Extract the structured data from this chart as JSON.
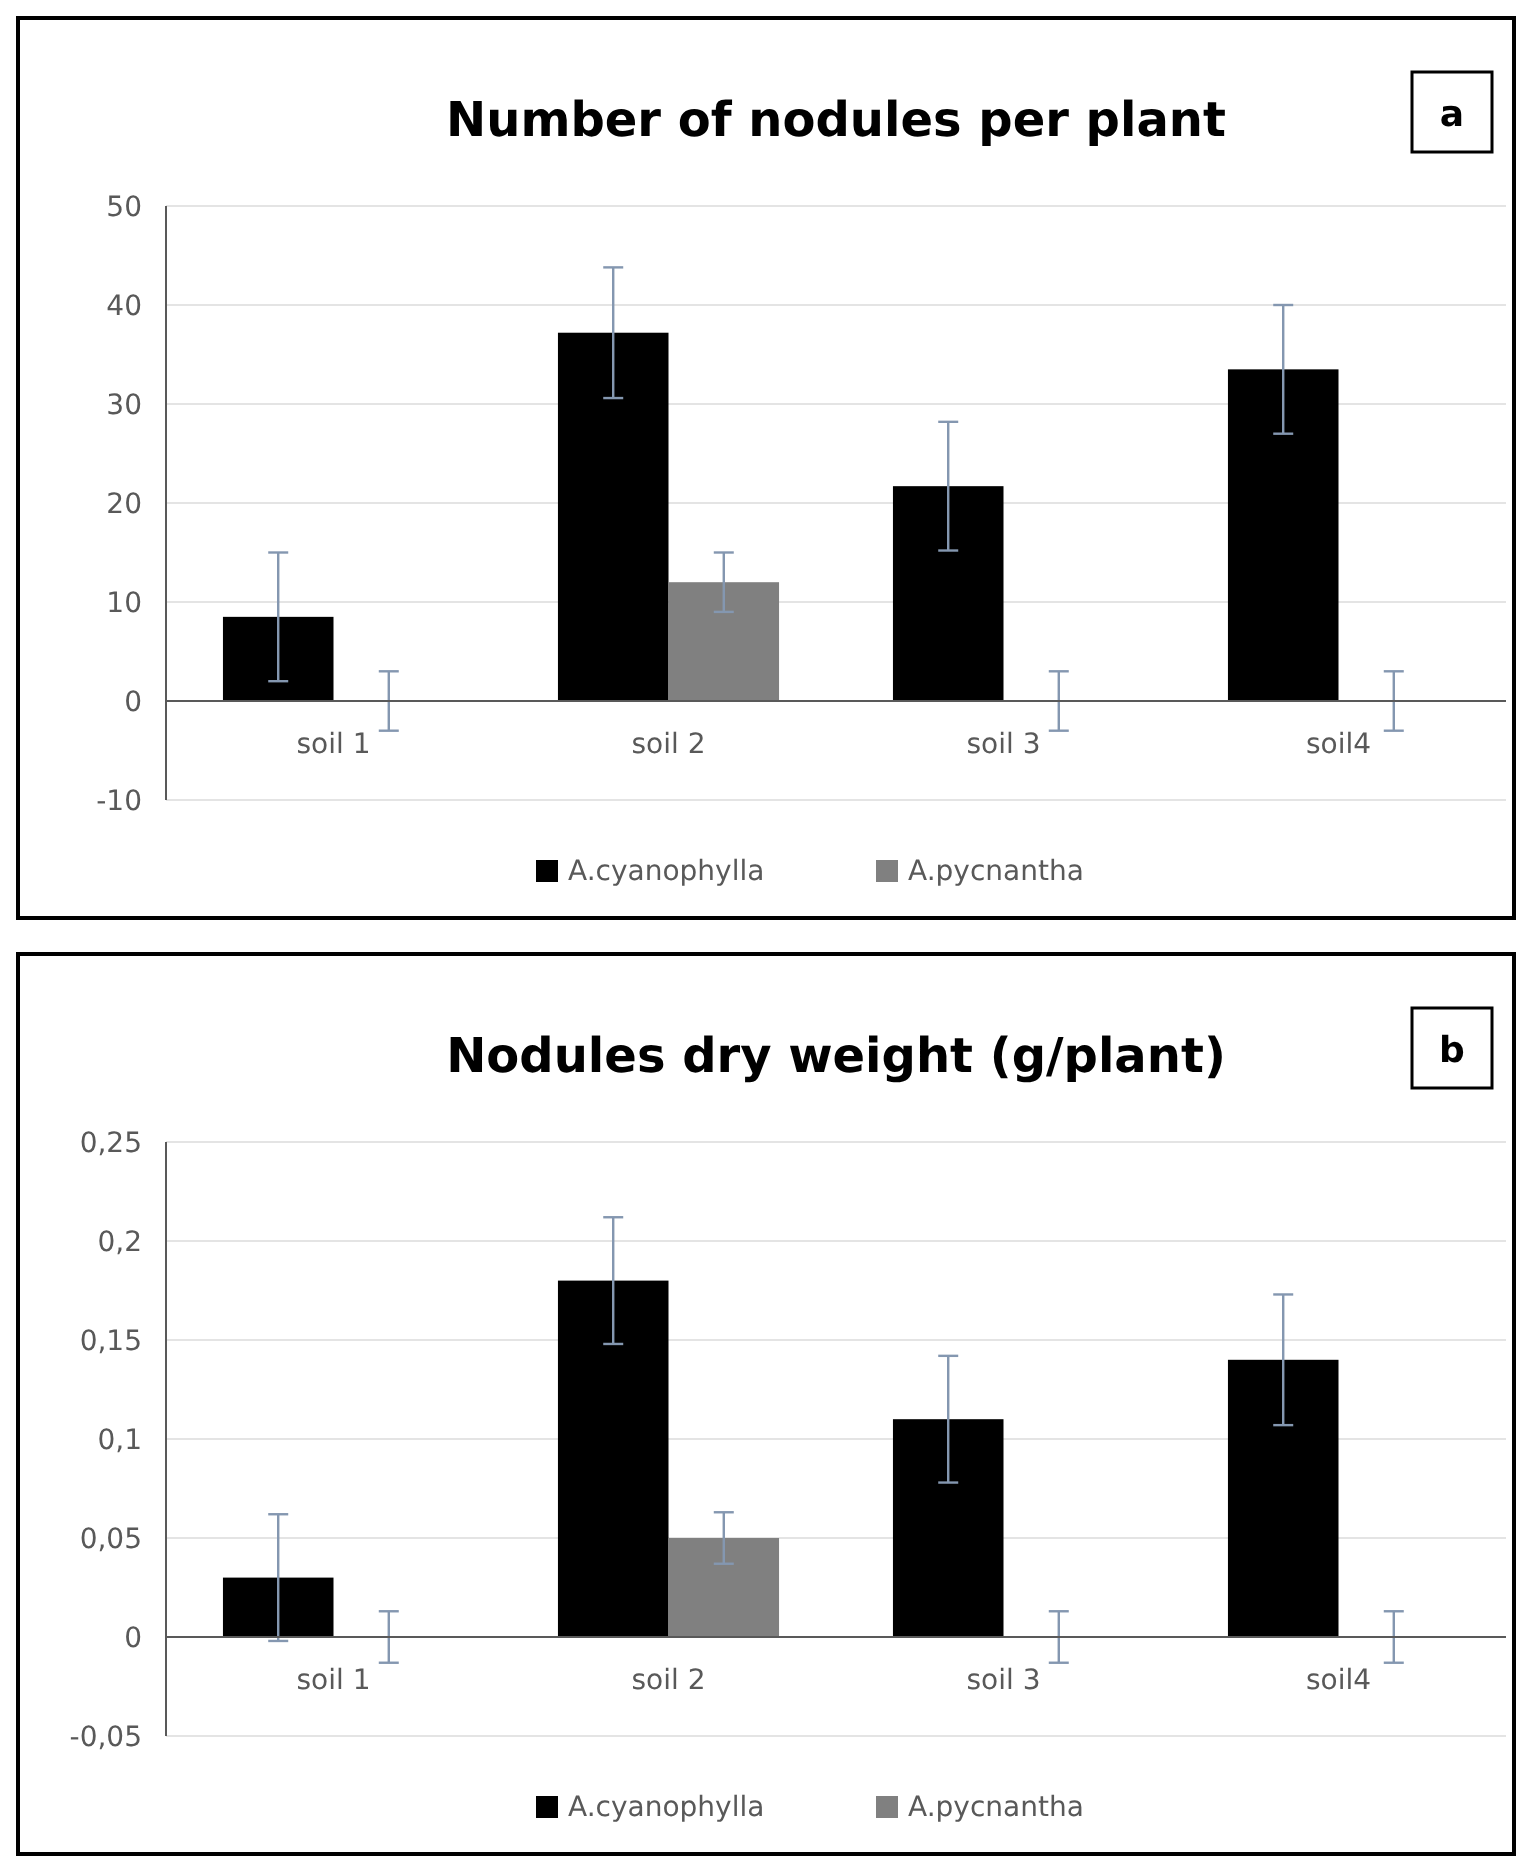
{
  "chart_data": [
    {
      "type": "bar",
      "title": "Number of nodules per plant",
      "categories": [
        "soil 1",
        "soil 2",
        "soil 3",
        "soil4"
      ],
      "ylim": [
        -10,
        50
      ],
      "yticks": [
        -10,
        0,
        10,
        20,
        30,
        40,
        50
      ],
      "grid": "y",
      "legend": "bottom",
      "annotations": [
        "a"
      ],
      "series": [
        {
          "name": "A.cyanophylla",
          "color": "#000000",
          "values": [
            8.5,
            37.2,
            21.7,
            33.5
          ],
          "errors": [
            6.5,
            6.6,
            6.5,
            6.5
          ]
        },
        {
          "name": "A.pycnantha",
          "color": "#808080",
          "values": [
            0,
            12,
            0,
            0
          ],
          "errors": [
            3,
            3,
            3,
            3
          ]
        }
      ]
    },
    {
      "type": "bar",
      "title": "Nodules dry weight (g/plant)",
      "categories": [
        "soil 1",
        "soil 2",
        "soil 3",
        "soil4"
      ],
      "ylim": [
        -0.05,
        0.25
      ],
      "yticks": [
        {
          "value": -0.05,
          "label": "-0,05"
        },
        0,
        {
          "value": 0.05,
          "label": "0,05"
        },
        {
          "value": 0.1,
          "label": "0,1"
        },
        {
          "value": 0.15,
          "label": "0,15"
        },
        {
          "value": 0.2,
          "label": "0,2"
        },
        {
          "value": 0.25,
          "label": "0,25"
        }
      ],
      "grid": "y",
      "legend": "bottom",
      "annotations": [
        "b"
      ],
      "series": [
        {
          "name": "A.cyanophylla",
          "color": "#000000",
          "values": [
            0.03,
            0.18,
            0.11,
            0.14
          ],
          "errors": [
            0.032,
            0.032,
            0.032,
            0.033
          ]
        },
        {
          "name": "A.pycnantha",
          "color": "#808080",
          "values": [
            0,
            0.05,
            0,
            0
          ],
          "errors": [
            0.013,
            0.013,
            0.013,
            0.013
          ]
        }
      ]
    }
  ]
}
